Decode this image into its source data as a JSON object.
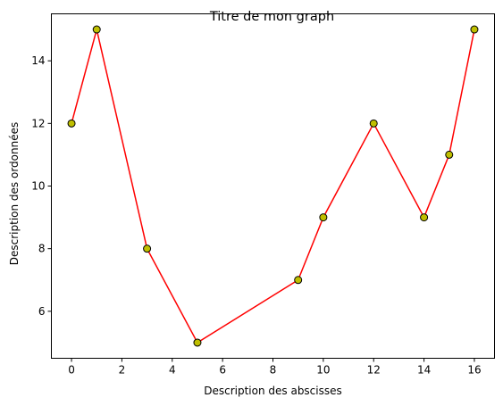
{
  "chart_data": {
    "type": "line",
    "title": "Titre de mon graph",
    "xlabel": "Description des abscisses",
    "ylabel": "Description des ordonnées",
    "x": [
      0,
      1,
      3,
      5,
      9,
      10,
      12,
      14,
      15,
      16
    ],
    "y": [
      12,
      15,
      8,
      5,
      7,
      9,
      12,
      9,
      11,
      15
    ],
    "xlim": [
      -0.8,
      16.8
    ],
    "ylim": [
      4.5,
      15.5
    ],
    "xticks": [
      0,
      2,
      4,
      6,
      8,
      10,
      12,
      14,
      16
    ],
    "yticks": [
      6,
      8,
      10,
      12,
      14
    ],
    "line_color": "#ff0000",
    "marker_face_color": "#bfbf00",
    "marker_edge_color": "#000000",
    "grid": false,
    "legend": false
  }
}
